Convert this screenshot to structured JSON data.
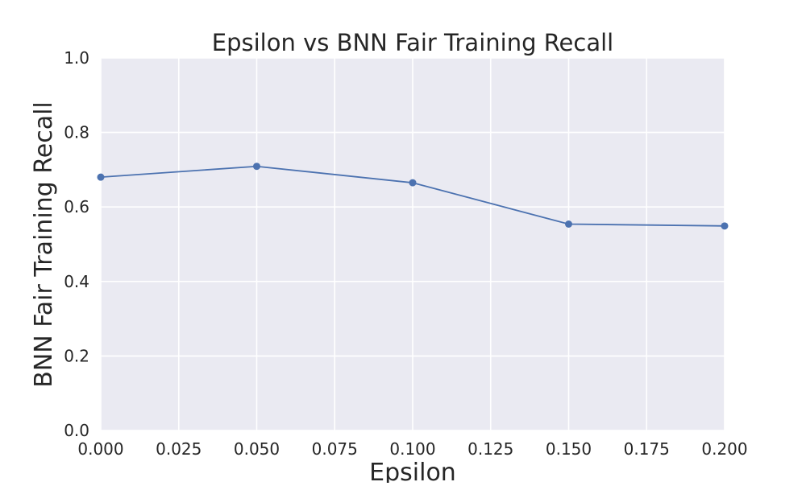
{
  "chart_data": {
    "type": "line",
    "title": "Epsilon vs BNN Fair Training Recall",
    "xlabel": "Epsilon",
    "ylabel": "BNN Fair Training Recall",
    "xlim": [
      0.0,
      0.2
    ],
    "ylim": [
      0.0,
      1.0
    ],
    "x_ticks": [
      0.0,
      0.025,
      0.05,
      0.075,
      0.1,
      0.125,
      0.15,
      0.175,
      0.2
    ],
    "x_tick_labels": [
      "0.000",
      "0.025",
      "0.050",
      "0.075",
      "0.100",
      "0.125",
      "0.150",
      "0.175",
      "0.200"
    ],
    "y_ticks": [
      0.0,
      0.2,
      0.4,
      0.6,
      0.8,
      1.0
    ],
    "y_tick_labels": [
      "0.0",
      "0.2",
      "0.4",
      "0.6",
      "0.8",
      "1.0"
    ],
    "grid": true,
    "legend": "none",
    "series": [
      {
        "x": [
          0.0,
          0.05,
          0.1,
          0.15,
          0.2
        ],
        "y": [
          0.68,
          0.709,
          0.665,
          0.554,
          0.549
        ],
        "color": "#4c72b0",
        "marker": "circle"
      }
    ]
  },
  "colors": {
    "plot_background": "#eaeaf2",
    "grid": "#ffffff",
    "text": "#262626"
  }
}
